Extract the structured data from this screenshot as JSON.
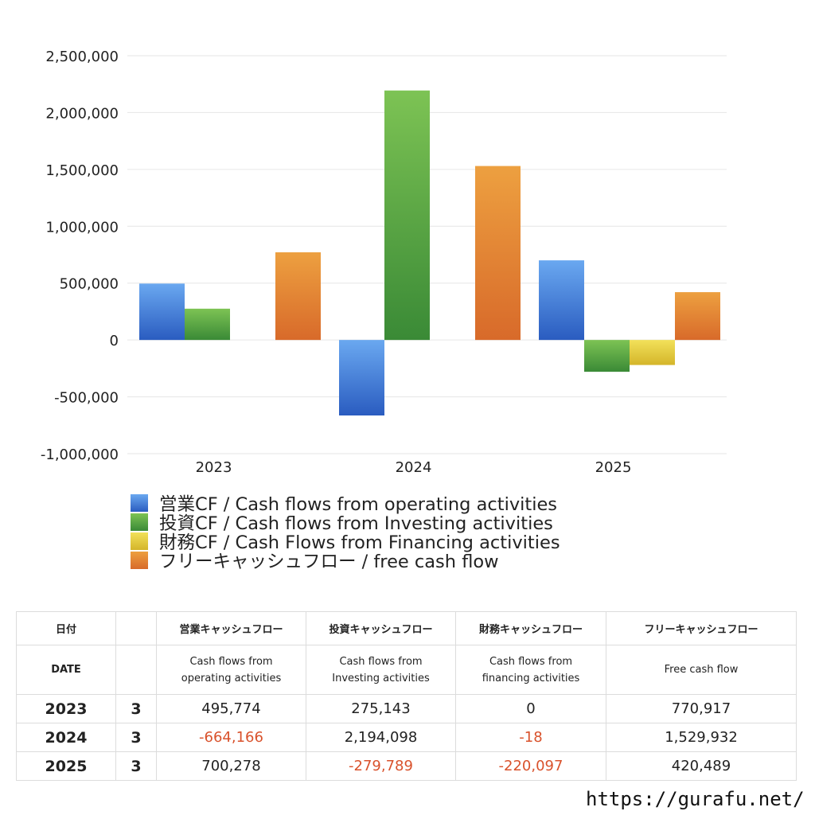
{
  "chart_data": {
    "type": "bar",
    "categories": [
      "2023",
      "2024",
      "2025"
    ],
    "ylim": [
      -1000000,
      2500000
    ],
    "yticks": [
      2500000,
      2000000,
      1500000,
      1000000,
      500000,
      0,
      -500000,
      -1000000
    ],
    "ytick_labels": [
      "2,500,000",
      "2,000,000",
      "1,500,000",
      "1,000,000",
      "500,000",
      "0",
      "-500,000",
      "-1,000,000"
    ],
    "grid": true,
    "legend_position": "bottom",
    "series": [
      {
        "name": "営業CF / Cash flows from operating activities",
        "values": [
          495774,
          -664166,
          700278
        ],
        "color_top": "#6aa8f0",
        "color_bottom": "#2a5cc0"
      },
      {
        "name": "投資CF / Cash flows from Investing activities",
        "values": [
          275143,
          2194098,
          -279789
        ],
        "color_top": "#7dc354",
        "color_bottom": "#3a8a36"
      },
      {
        "name": "財務CF / Cash Flows from Financing activities",
        "values": [
          0,
          -18,
          -220097
        ],
        "color_top": "#f2e15a",
        "color_bottom": "#d4b52a"
      },
      {
        "name": "フリーキャッシュフロー / free cash flow",
        "values": [
          770917,
          1529932,
          420489
        ],
        "color_top": "#eda040",
        "color_bottom": "#d86a2a"
      }
    ]
  },
  "table": {
    "header_jp": [
      "日付",
      "",
      "営業キャッシュフロー",
      "投資キャッシュフロー",
      "財務キャッシュフロー",
      "フリーキャッシュフロー"
    ],
    "header_en": {
      "date": "DATE",
      "operating_1": "Cash flows from",
      "operating_2": "operating activities",
      "investing_1": "Cash flows from",
      "investing_2": "Investing activities",
      "financing_1": "Cash flows from",
      "financing_2": "financing activities",
      "free": "Free cash flow"
    },
    "rows": [
      {
        "year": "2023",
        "month": "3",
        "operating": "495,774",
        "investing": "275,143",
        "financing": "0",
        "free": "770,917"
      },
      {
        "year": "2024",
        "month": "3",
        "operating": "-664,166",
        "investing": "2,194,098",
        "financing": "-18",
        "free": "1,529,932"
      },
      {
        "year": "2025",
        "month": "3",
        "operating": "700,278",
        "investing": "-279,789",
        "financing": "-220,097",
        "free": "420,489"
      }
    ]
  },
  "site": "https://gurafu.net/"
}
